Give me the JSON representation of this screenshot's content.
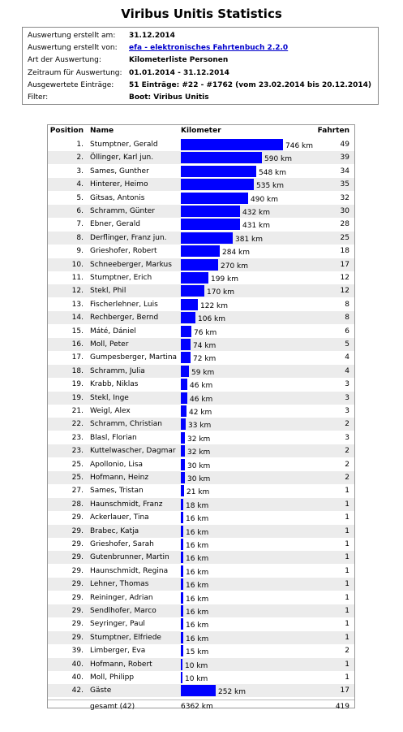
{
  "title": "Viribus Unitis Statistics",
  "info": [
    {
      "label": "Auswertung erstellt am:",
      "value": "31.12.2014",
      "link": false
    },
    {
      "label": "Auswertung erstellt von:",
      "value": "efa - elektronisches Fahrtenbuch 2.2.0",
      "link": true
    },
    {
      "label": "Art der Auswertung:",
      "value": "Kilometerliste Personen",
      "link": false
    },
    {
      "label": "Zeitraum für Auswertung:",
      "value": "01.01.2014 - 31.12.2014",
      "link": false
    },
    {
      "label": "Ausgewertete Einträge:",
      "value": "51 Einträge: #22 - #1762 (vom 23.02.2014 bis 20.12.2014)",
      "link": false
    },
    {
      "label": "Filter:",
      "value": "Boot: Viribus Unitis",
      "link": false
    }
  ],
  "table": {
    "headers": {
      "position": "Position",
      "name": "Name",
      "km": "Kilometer",
      "trips": "Fahrten"
    },
    "rows": [
      {
        "pos": "1.",
        "name": "Stumptner, Gerald",
        "km": 746,
        "trips": "49"
      },
      {
        "pos": "2.",
        "name": "Öllinger, Karl jun.",
        "km": 590,
        "trips": "39"
      },
      {
        "pos": "3.",
        "name": "Sames, Gunther",
        "km": 548,
        "trips": "34"
      },
      {
        "pos": "4.",
        "name": "Hinterer, Heimo",
        "km": 535,
        "trips": "35"
      },
      {
        "pos": "5.",
        "name": "Gitsas, Antonis",
        "km": 490,
        "trips": "32"
      },
      {
        "pos": "6.",
        "name": "Schramm, Günter",
        "km": 432,
        "trips": "30"
      },
      {
        "pos": "7.",
        "name": "Ebner, Gerald",
        "km": 431,
        "trips": "28"
      },
      {
        "pos": "8.",
        "name": "Derflinger, Franz jun.",
        "km": 381,
        "trips": "25"
      },
      {
        "pos": "9.",
        "name": "Grieshofer, Robert",
        "km": 284,
        "trips": "18"
      },
      {
        "pos": "10.",
        "name": "Schneeberger, Markus",
        "km": 270,
        "trips": "17"
      },
      {
        "pos": "11.",
        "name": "Stumptner, Erich",
        "km": 199,
        "trips": "12"
      },
      {
        "pos": "12.",
        "name": "Stekl, Phil",
        "km": 170,
        "trips": "12"
      },
      {
        "pos": "13.",
        "name": "Fischerlehner, Luis",
        "km": 122,
        "trips": "8"
      },
      {
        "pos": "14.",
        "name": "Rechberger, Bernd",
        "km": 106,
        "trips": "8"
      },
      {
        "pos": "15.",
        "name": "Máté, Dániel",
        "km": 76,
        "trips": "6"
      },
      {
        "pos": "16.",
        "name": "Moll, Peter",
        "km": 74,
        "trips": "5"
      },
      {
        "pos": "17.",
        "name": "Gumpesberger, Martina",
        "km": 72,
        "trips": "4"
      },
      {
        "pos": "18.",
        "name": "Schramm, Julia",
        "km": 59,
        "trips": "4"
      },
      {
        "pos": "19.",
        "name": "Krabb, Niklas",
        "km": 46,
        "trips": "3"
      },
      {
        "pos": "19.",
        "name": "Stekl, Inge",
        "km": 46,
        "trips": "3"
      },
      {
        "pos": "21.",
        "name": "Weigl, Alex",
        "km": 42,
        "trips": "3"
      },
      {
        "pos": "22.",
        "name": "Schramm, Christian",
        "km": 33,
        "trips": "2"
      },
      {
        "pos": "23.",
        "name": "Blasl, Florian",
        "km": 32,
        "trips": "3"
      },
      {
        "pos": "23.",
        "name": "Kuttelwascher, Dagmar",
        "km": 32,
        "trips": "2"
      },
      {
        "pos": "25.",
        "name": "Apollonio, Lisa",
        "km": 30,
        "trips": "2"
      },
      {
        "pos": "25.",
        "name": "Hofmann, Heinz",
        "km": 30,
        "trips": "2"
      },
      {
        "pos": "27.",
        "name": "Sames, Tristan",
        "km": 21,
        "trips": "1"
      },
      {
        "pos": "28.",
        "name": "Haunschmidt, Franz",
        "km": 18,
        "trips": "1"
      },
      {
        "pos": "29.",
        "name": "Ackerlauer, Tina",
        "km": 16,
        "trips": "1"
      },
      {
        "pos": "29.",
        "name": "Brabec, Katja",
        "km": 16,
        "trips": "1"
      },
      {
        "pos": "29.",
        "name": "Grieshofer, Sarah",
        "km": 16,
        "trips": "1"
      },
      {
        "pos": "29.",
        "name": "Gutenbrunner, Martin",
        "km": 16,
        "trips": "1"
      },
      {
        "pos": "29.",
        "name": "Haunschmidt, Regina",
        "km": 16,
        "trips": "1"
      },
      {
        "pos": "29.",
        "name": "Lehner, Thomas",
        "km": 16,
        "trips": "1"
      },
      {
        "pos": "29.",
        "name": "Reininger, Adrian",
        "km": 16,
        "trips": "1"
      },
      {
        "pos": "29.",
        "name": "Sendlhofer, Marco",
        "km": 16,
        "trips": "1"
      },
      {
        "pos": "29.",
        "name": "Seyringer, Paul",
        "km": 16,
        "trips": "1"
      },
      {
        "pos": "29.",
        "name": "Stumptner, Elfriede",
        "km": 16,
        "trips": "1"
      },
      {
        "pos": "39.",
        "name": "Limberger, Eva",
        "km": 15,
        "trips": "2"
      },
      {
        "pos": "40.",
        "name": "Hofmann, Robert",
        "km": 10,
        "trips": "1"
      },
      {
        "pos": "40.",
        "name": "Moll, Philipp",
        "km": 10,
        "trips": "1"
      },
      {
        "pos": "42.",
        "name": "Gäste",
        "km": 252,
        "trips": "17"
      }
    ],
    "km_suffix": " km",
    "total": {
      "name": "gesamt (42)",
      "km": "6362 km",
      "trips": "419"
    }
  },
  "colors": {
    "bar": "#0000ff",
    "link": "#0000cc"
  }
}
